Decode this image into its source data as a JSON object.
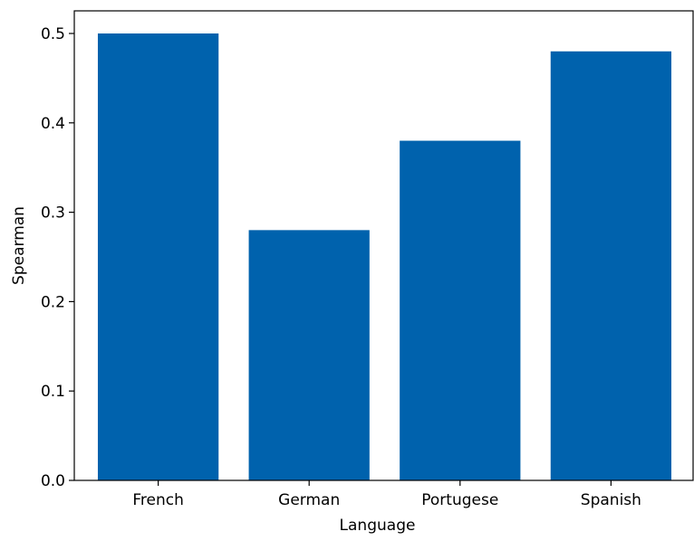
{
  "chart_data": {
    "type": "bar",
    "title": "",
    "xlabel": "Language",
    "ylabel": "Spearman",
    "categories": [
      "French",
      "German",
      "Portugese",
      "Spanish"
    ],
    "values": [
      0.5,
      0.28,
      0.38,
      0.48
    ],
    "ylim": [
      0.0,
      0.5
    ],
    "yticks": [
      "0.0",
      "0.1",
      "0.2",
      "0.3",
      "0.4",
      "0.5"
    ],
    "grid": false,
    "legend": "none",
    "bar_color": "#0062ad"
  }
}
